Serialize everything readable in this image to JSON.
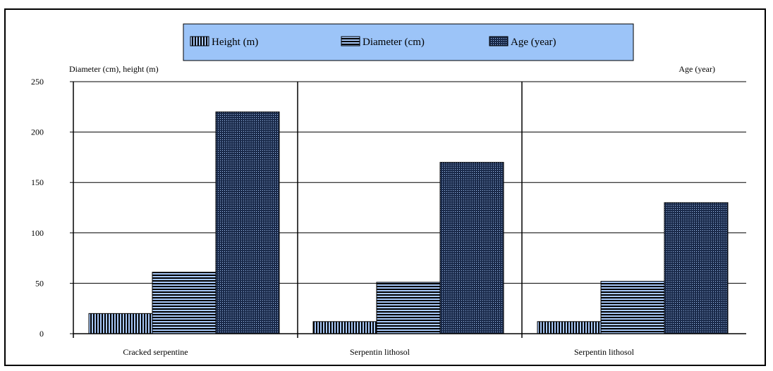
{
  "chart_data": {
    "type": "bar",
    "categories": [
      "Cracked serpentine",
      "Serpentin lithosol",
      "Serpentin lithosol"
    ],
    "series": [
      {
        "name": "Height (m)",
        "values": [
          20,
          12,
          12
        ],
        "pattern": "vertical-stripes",
        "color": "#a8c8f8"
      },
      {
        "name": "Diameter (cm)",
        "values": [
          61,
          51,
          52
        ],
        "pattern": "horizontal-stripes",
        "color": "#a8c8f8"
      },
      {
        "name": "Age (year)",
        "values": [
          220,
          170,
          130
        ],
        "pattern": "dots",
        "color": "#a8c8f8"
      }
    ],
    "ylabel_left": "Diameter (cm), height (m)",
    "ylabel_right": "Age (year)",
    "ylim": [
      0,
      250
    ],
    "yticks": [
      0,
      50,
      100,
      150,
      200,
      250
    ],
    "grid": true,
    "legend_position": "top-center",
    "legend_background": "#9cc4f8"
  }
}
